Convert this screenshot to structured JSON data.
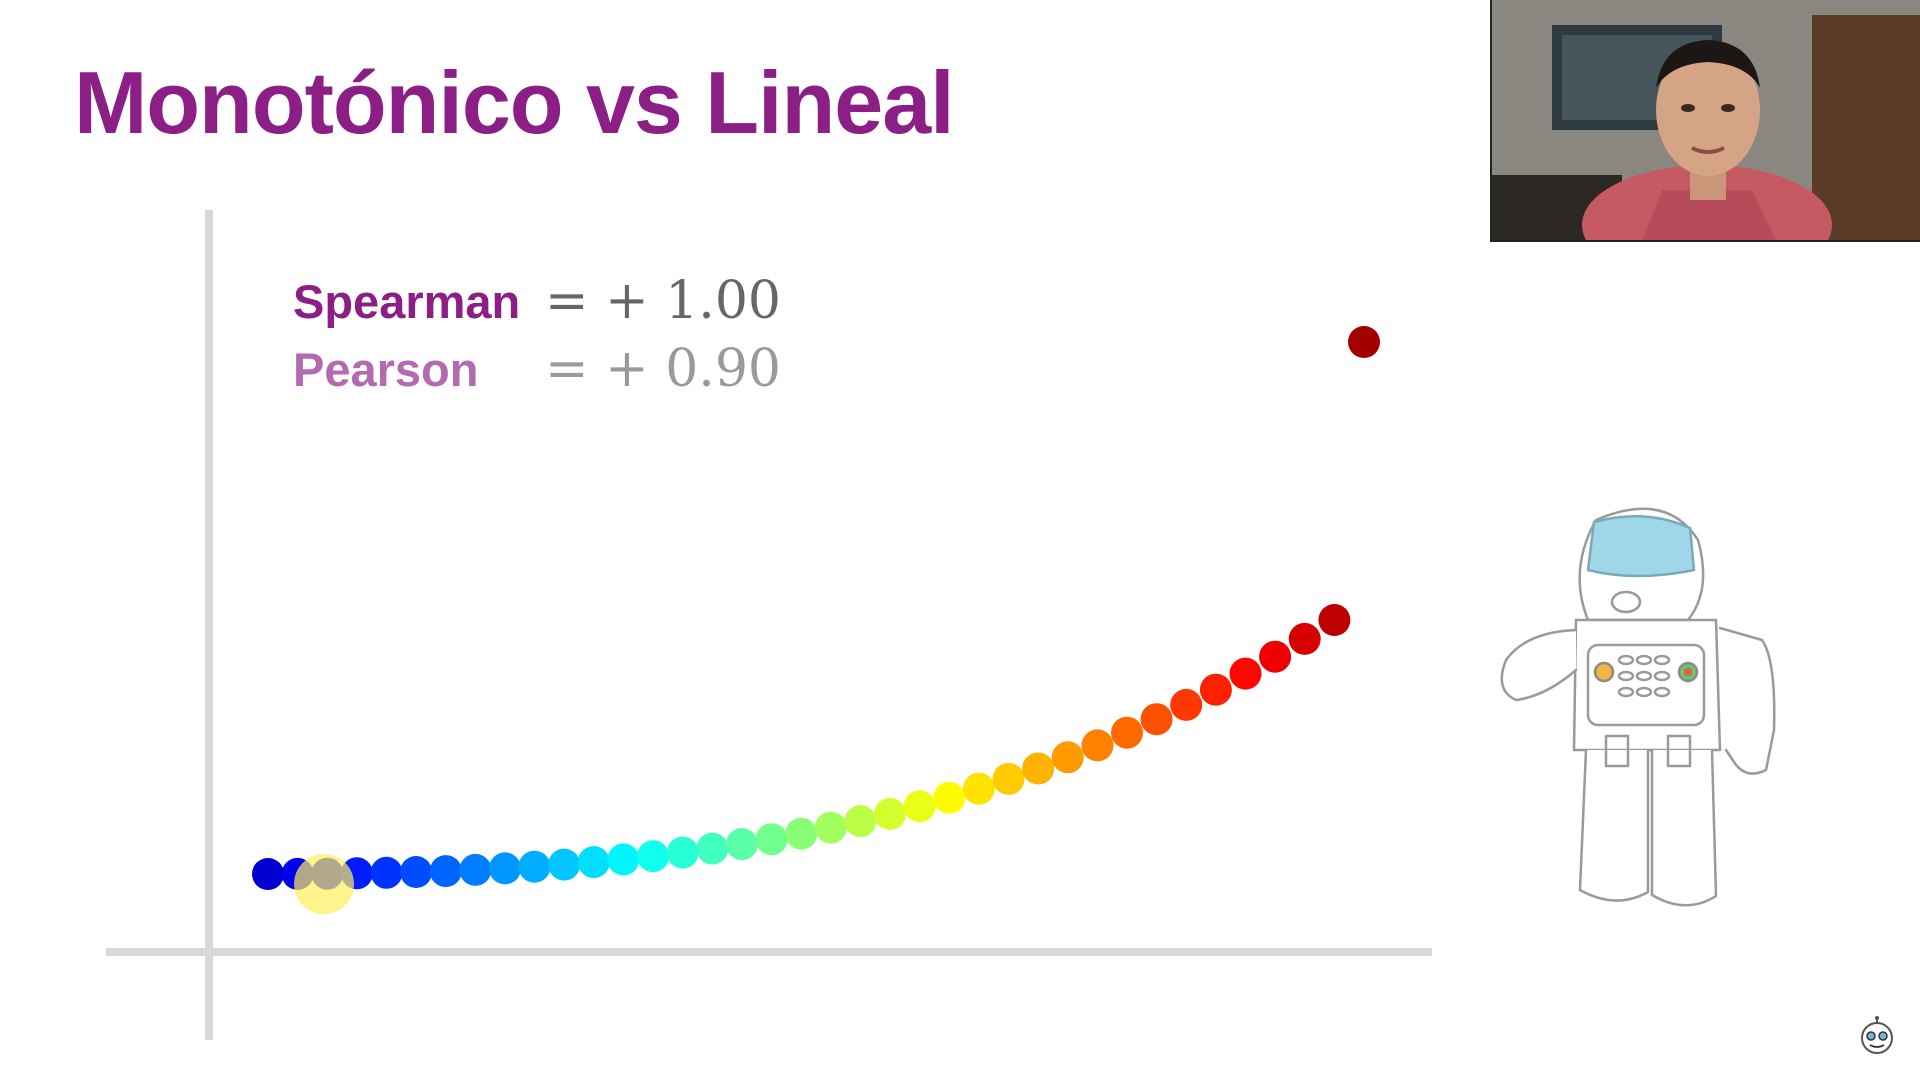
{
  "slide": {
    "title": "Monotónico vs Lineal"
  },
  "colors": {
    "title": "#8b1f86",
    "spearman": "#8b1f86",
    "pearson": "#b36ab0",
    "spearman_value": "#666666",
    "pearson_value": "#9a9a9a",
    "axis": "#d9d9d9",
    "cursor_highlight": "#ffef5a"
  },
  "chart_data": {
    "type": "scatter",
    "title": "",
    "xlabel": "",
    "ylabel": "",
    "grid": false,
    "legend": "none",
    "xlim": [
      0,
      1
    ],
    "ylim": [
      0,
      1
    ],
    "colormap": "jet",
    "annotations": [
      {
        "name": "Spearman",
        "value": "= + 1.00",
        "style": "primary"
      },
      {
        "name": "Pearson",
        "value": "= + 0.90",
        "style": "secondary"
      }
    ],
    "series": [
      {
        "x": [
          0.0,
          0.027,
          0.0541,
          0.0811,
          0.1081,
          0.1351,
          0.1622,
          0.1892,
          0.2162,
          0.2432,
          0.2703,
          0.2973,
          0.3243,
          0.3514,
          0.3784,
          0.4054,
          0.4324,
          0.4595,
          0.4865,
          0.5135,
          0.5405,
          0.5676,
          0.5946,
          0.6216,
          0.6486,
          0.6757,
          0.7027,
          0.7297,
          0.7568,
          0.7838,
          0.8108,
          0.8378,
          0.8649,
          0.8919,
          0.9189,
          0.9459,
          0.973,
          1.0
        ],
        "y": [
          0.0,
          0.0002,
          0.0006,
          0.0013,
          0.0023,
          0.0037,
          0.0055,
          0.0077,
          0.0105,
          0.0138,
          0.0177,
          0.0223,
          0.0275,
          0.0335,
          0.0402,
          0.0478,
          0.0562,
          0.0655,
          0.0758,
          0.0871,
          0.0995,
          0.1129,
          0.1275,
          0.1433,
          0.1604,
          0.1787,
          0.1983,
          0.2193,
          0.2417,
          0.2656,
          0.291,
          0.3179,
          0.3464,
          0.3766,
          0.4084,
          0.442,
          0.4774,
          1.0
        ]
      }
    ]
  },
  "overlay": {
    "webcam_label": "presenter webcam",
    "robot_label": "robot illustration",
    "logo_label": "channel logo"
  }
}
